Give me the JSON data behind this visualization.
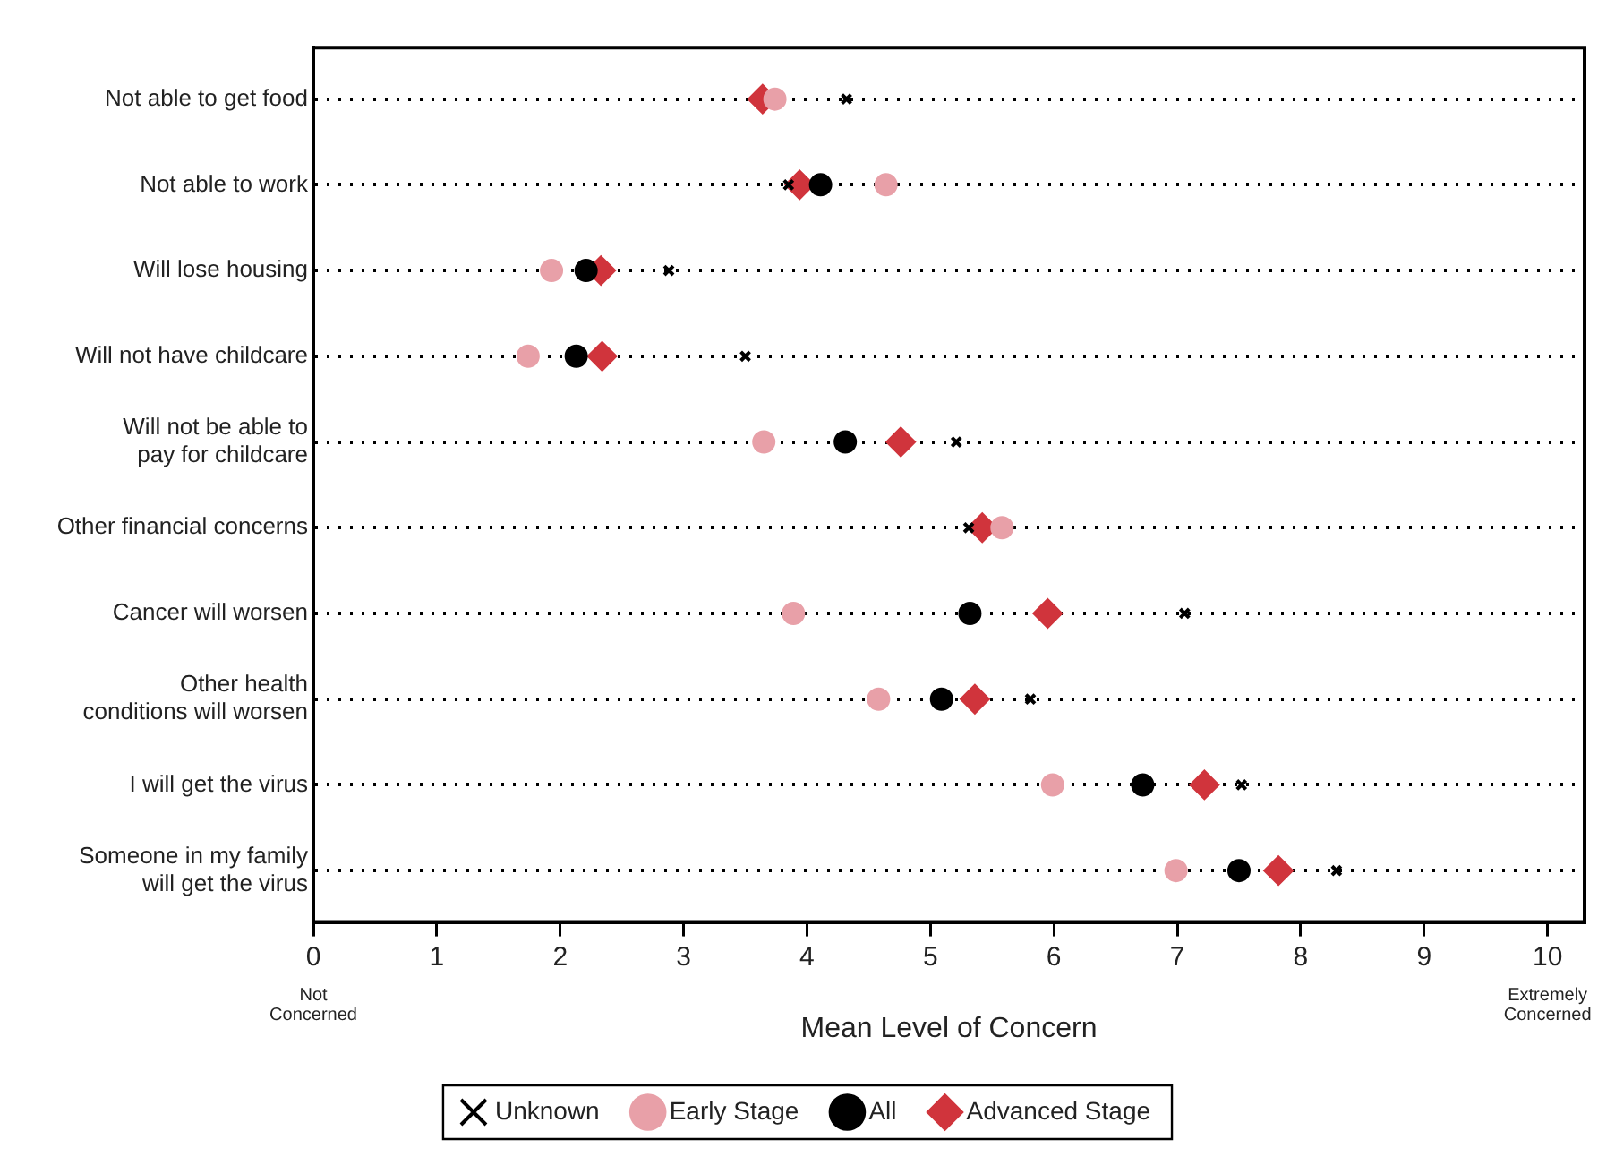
{
  "chart_data": {
    "type": "scatter",
    "xlabel": "Mean Level of Concern",
    "categories": [
      "Not able to get food",
      "Not able to work",
      "Will lose housing",
      "Will not have childcare",
      "Will not be able to pay for childcare",
      "Other financial concerns",
      "Cancer will worsen",
      "Other health conditions will worsen",
      "I will get the virus",
      "Someone in my family will get the virus"
    ],
    "series": [
      {
        "name": "Early Stage",
        "color": "#e8a0a8",
        "marker": "circle",
        "values": [
          3.74,
          4.64,
          1.93,
          1.74,
          3.65,
          5.58,
          3.89,
          4.58,
          5.99,
          6.99
        ]
      },
      {
        "name": "Advanced Stage",
        "color": "#d0343c",
        "marker": "diamond",
        "values": [
          3.64,
          3.94,
          2.33,
          2.34,
          4.76,
          5.42,
          5.95,
          5.36,
          7.22,
          7.82
        ]
      },
      {
        "name": "Unknown",
        "color": "#000000",
        "marker": "cross",
        "values": [
          4.32,
          3.85,
          2.88,
          3.5,
          5.21,
          5.31,
          7.06,
          5.81,
          7.52,
          8.29
        ]
      },
      {
        "name": "All",
        "color": "#000000",
        "marker": "circle",
        "values": [
          null,
          4.11,
          2.21,
          2.13,
          4.31,
          null,
          5.32,
          5.09,
          6.72,
          7.5
        ]
      }
    ],
    "xlim": [
      0,
      10.3
    ],
    "xticks": [
      0,
      1,
      2,
      3,
      4,
      5,
      6,
      7,
      8,
      9,
      10
    ],
    "annotations": [
      "Not Concerned",
      "Extremely Concerned"
    ],
    "grid": "y",
    "legend": "bottom",
    "orientation": "horizontal"
  }
}
